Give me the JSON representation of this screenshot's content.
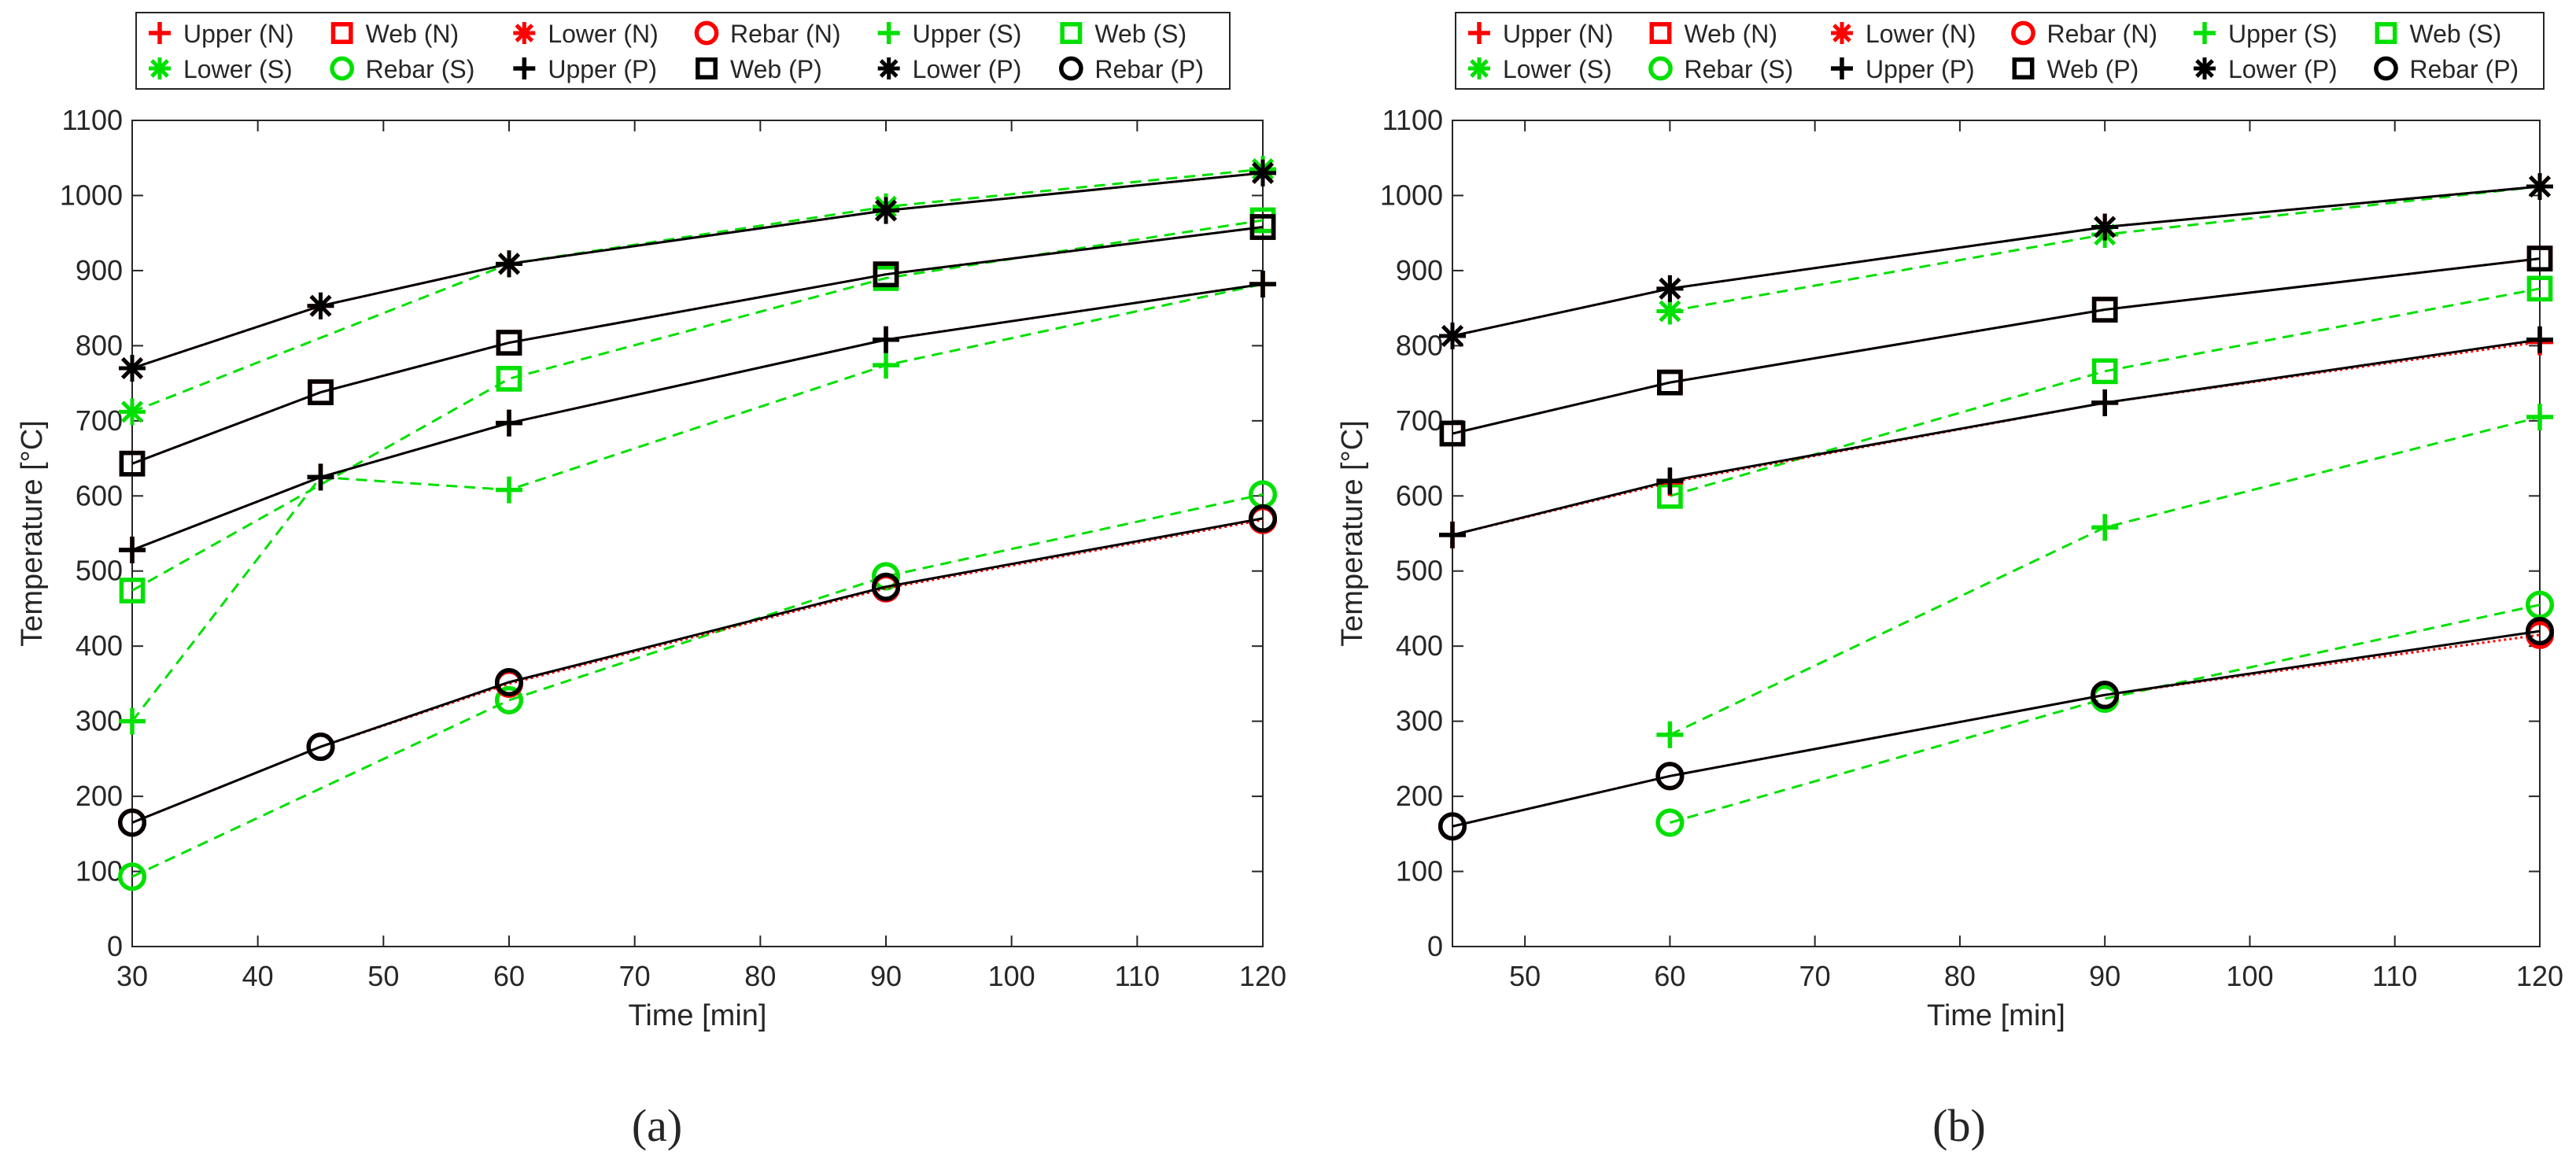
{
  "figure": {
    "colors": {
      "N": "#ff0000",
      "S": "#00e000",
      "P": "#000000",
      "axis": "#262626",
      "grid": "#ffffff"
    },
    "legend_labels": [
      "Upper (N)",
      "Web (N)",
      "Lower (N)",
      "Rebar (N)",
      "Upper (S)",
      "Web (S)",
      "Lower (S)",
      "Rebar (S)",
      "Upper (P)",
      "Web (P)",
      "Lower (P)",
      "Rebar (P)"
    ]
  },
  "chart_data": [
    {
      "type": "line",
      "sublabel": "(a)",
      "xlabel": "Time [min]",
      "ylabel": "Temperature [°C]",
      "xlim": [
        30,
        120
      ],
      "ylim": [
        0,
        1100
      ],
      "xticks": [
        30,
        40,
        50,
        60,
        70,
        80,
        90,
        100,
        110,
        120
      ],
      "yticks": [
        0,
        100,
        200,
        300,
        400,
        500,
        600,
        700,
        800,
        900,
        1000,
        1100
      ],
      "legend_position": "top",
      "series": [
        {
          "name": "Upper (N)",
          "group": "N",
          "marker": "plus",
          "x": [
            30,
            45,
            60,
            90,
            120
          ],
          "y": [
            528,
            625,
            697,
            808,
            882
          ]
        },
        {
          "name": "Web (N)",
          "group": "N",
          "marker": "square",
          "x": [
            30,
            45,
            60,
            90,
            120
          ],
          "y": [
            643,
            738,
            804,
            895,
            958
          ]
        },
        {
          "name": "Lower (N)",
          "group": "N",
          "marker": "asterisk",
          "x": [
            30,
            45,
            60,
            90,
            120
          ],
          "y": [
            770,
            853,
            909,
            980,
            1030
          ]
        },
        {
          "name": "Rebar (N)",
          "group": "N",
          "marker": "circle",
          "x": [
            30,
            45,
            60,
            90,
            120
          ],
          "y": [
            165,
            266,
            350,
            477,
            568
          ]
        },
        {
          "name": "Upper (S)",
          "group": "S",
          "marker": "plus",
          "x": [
            30,
            45,
            60,
            90,
            120
          ],
          "y": [
            300,
            625,
            608,
            774,
            882
          ]
        },
        {
          "name": "Web (S)",
          "group": "S",
          "marker": "square",
          "x": [
            30,
            60,
            90,
            120
          ],
          "y": [
            474,
            756,
            890,
            967
          ]
        },
        {
          "name": "Lower (S)",
          "group": "S",
          "marker": "asterisk",
          "x": [
            30,
            60,
            90,
            120
          ],
          "y": [
            712,
            909,
            985,
            1035
          ]
        },
        {
          "name": "Rebar (S)",
          "group": "S",
          "marker": "circle",
          "x": [
            30,
            60,
            90,
            120
          ],
          "y": [
            93,
            328,
            493,
            602
          ]
        },
        {
          "name": "Upper (P)",
          "group": "P",
          "marker": "plus",
          "x": [
            30,
            45,
            60,
            90,
            120
          ],
          "y": [
            528,
            625,
            697,
            808,
            882
          ]
        },
        {
          "name": "Web (P)",
          "group": "P",
          "marker": "square",
          "x": [
            30,
            45,
            60,
            90,
            120
          ],
          "y": [
            643,
            738,
            804,
            895,
            958
          ]
        },
        {
          "name": "Lower (P)",
          "group": "P",
          "marker": "asterisk",
          "x": [
            30,
            45,
            60,
            90,
            120
          ],
          "y": [
            770,
            853,
            909,
            980,
            1030
          ]
        },
        {
          "name": "Rebar (P)",
          "group": "P",
          "marker": "circle",
          "x": [
            30,
            45,
            60,
            90,
            120
          ],
          "y": [
            165,
            266,
            352,
            479,
            570
          ]
        }
      ]
    },
    {
      "type": "line",
      "sublabel": "(b)",
      "xlabel": "Time [min]",
      "ylabel": "Temperature [°C]",
      "xlim": [
        45,
        120
      ],
      "ylim": [
        0,
        1100
      ],
      "xticks": [
        50,
        60,
        70,
        80,
        90,
        100,
        110,
        120
      ],
      "yticks": [
        0,
        100,
        200,
        300,
        400,
        500,
        600,
        700,
        800,
        900,
        1000,
        1100
      ],
      "legend_position": "top",
      "series": [
        {
          "name": "Upper (N)",
          "group": "N",
          "marker": "plus",
          "x": [
            45,
            60,
            90,
            120
          ],
          "y": [
            548,
            618,
            724,
            805
          ]
        },
        {
          "name": "Web (N)",
          "group": "N",
          "marker": "square",
          "x": [
            45,
            60,
            90,
            120
          ],
          "y": [
            683,
            751,
            848,
            916
          ]
        },
        {
          "name": "Lower (N)",
          "group": "N",
          "marker": "asterisk",
          "x": [
            45,
            60,
            90,
            120
          ],
          "y": [
            813,
            876,
            958,
            1012
          ]
        },
        {
          "name": "Rebar (N)",
          "group": "N",
          "marker": "circle",
          "x": [
            45,
            60,
            90,
            120
          ],
          "y": [
            160,
            227,
            335,
            415
          ]
        },
        {
          "name": "Upper (S)",
          "group": "S",
          "marker": "plus",
          "x": [
            60,
            90,
            120
          ],
          "y": [
            282,
            558,
            705
          ]
        },
        {
          "name": "Web (S)",
          "group": "S",
          "marker": "square",
          "x": [
            60,
            90,
            120
          ],
          "y": [
            600,
            766,
            876
          ]
        },
        {
          "name": "Lower (S)",
          "group": "S",
          "marker": "asterisk",
          "x": [
            60,
            90,
            120
          ],
          "y": [
            846,
            948,
            1012
          ]
        },
        {
          "name": "Rebar (S)",
          "group": "S",
          "marker": "circle",
          "x": [
            60,
            90,
            120
          ],
          "y": [
            165,
            330,
            455
          ]
        },
        {
          "name": "Upper (P)",
          "group": "P",
          "marker": "plus",
          "x": [
            45,
            60,
            90,
            120
          ],
          "y": [
            548,
            620,
            724,
            808
          ]
        },
        {
          "name": "Web (P)",
          "group": "P",
          "marker": "square",
          "x": [
            45,
            60,
            90,
            120
          ],
          "y": [
            683,
            751,
            848,
            916
          ]
        },
        {
          "name": "Lower (P)",
          "group": "P",
          "marker": "asterisk",
          "x": [
            45,
            60,
            90,
            120
          ],
          "y": [
            813,
            876,
            958,
            1012
          ]
        },
        {
          "name": "Rebar (P)",
          "group": "P",
          "marker": "circle",
          "x": [
            45,
            60,
            90,
            120
          ],
          "y": [
            160,
            227,
            335,
            420
          ]
        }
      ]
    }
  ]
}
